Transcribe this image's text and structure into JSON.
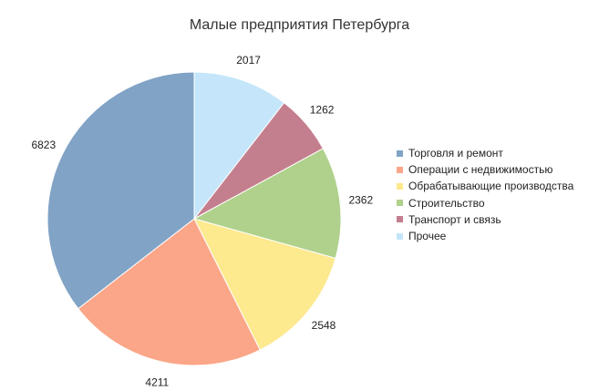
{
  "chart_data": {
    "type": "pie",
    "title": "Малые предприятия Петербурга",
    "legend_position": "right",
    "slices": [
      {
        "label": "Торговля и ремонт",
        "value": 6823,
        "value_label": "6823",
        "color": "#81A3C6"
      },
      {
        "label": "Операции с недвижимостью",
        "value": 4211,
        "value_label": "4211",
        "color": "#FBA688"
      },
      {
        "label": "Обрабатывающие производства",
        "value": 2548,
        "value_label": "2548",
        "color": "#FDE98E"
      },
      {
        "label": "Строительство",
        "value": 2362,
        "value_label": "2362",
        "color": "#AFD18C"
      },
      {
        "label": "Транспорт и связь",
        "value": 1262,
        "value_label": "1262",
        "color": "#C47F8E"
      },
      {
        "label": "Прочее",
        "value": 2017,
        "value_label": "2017",
        "color": "#C5E6FA"
      }
    ],
    "drawing_order": [
      5,
      4,
      3,
      2,
      1,
      0
    ],
    "start": "12 o'clock",
    "direction": "clockwise"
  }
}
